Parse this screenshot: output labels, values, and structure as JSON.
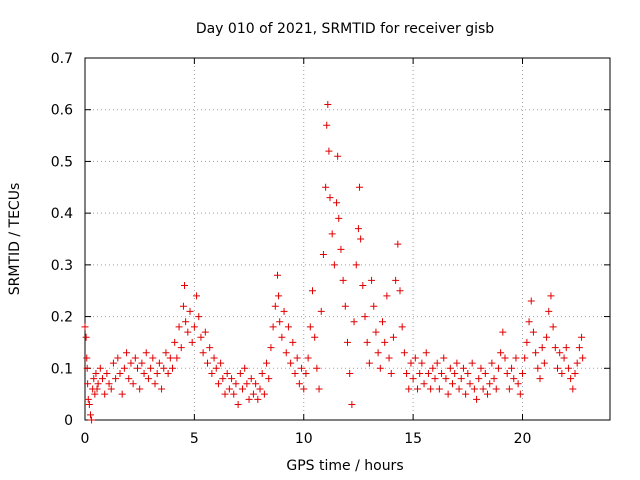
{
  "chart_data": {
    "type": "scatter",
    "title": "Day 010 of 2021, SRMTID for receiver gisb",
    "xlabel": "GPS time / hours",
    "ylabel": "SRMTID / TECUs",
    "xlim": [
      0,
      24
    ],
    "ylim": [
      0,
      0.7
    ],
    "x_ticks": [
      0,
      5,
      10,
      15,
      20
    ],
    "x_tick_labels": [
      "0",
      "5",
      "10",
      "15",
      "20"
    ],
    "y_ticks": [
      0,
      0.1,
      0.2,
      0.3,
      0.4,
      0.5,
      0.6,
      0.7
    ],
    "y_tick_labels": [
      "0",
      "0.1",
      "0.2",
      "0.3",
      "0.4",
      "0.5",
      "0.6",
      "0.7"
    ],
    "grid": true,
    "marker": "plus",
    "color": "#e00000",
    "series": [
      {
        "name": "SRMTID",
        "points": [
          [
            0.0,
            0.18
          ],
          [
            0.05,
            0.16
          ],
          [
            0.08,
            0.12
          ],
          [
            0.1,
            0.1
          ],
          [
            0.12,
            0.07
          ],
          [
            0.15,
            0.04
          ],
          [
            0.2,
            0.03
          ],
          [
            0.25,
            0.01
          ],
          [
            0.3,
            0.0
          ],
          [
            0.35,
            0.06
          ],
          [
            0.4,
            0.08
          ],
          [
            0.45,
            0.05
          ],
          [
            0.5,
            0.09
          ],
          [
            0.55,
            0.06
          ],
          [
            0.6,
            0.07
          ],
          [
            0.7,
            0.1
          ],
          [
            0.8,
            0.08
          ],
          [
            0.9,
            0.05
          ],
          [
            1.0,
            0.09
          ],
          [
            1.1,
            0.07
          ],
          [
            1.2,
            0.06
          ],
          [
            1.3,
            0.11
          ],
          [
            1.4,
            0.08
          ],
          [
            1.5,
            0.12
          ],
          [
            1.6,
            0.09
          ],
          [
            1.7,
            0.05
          ],
          [
            1.8,
            0.1
          ],
          [
            1.9,
            0.13
          ],
          [
            2.0,
            0.08
          ],
          [
            2.1,
            0.11
          ],
          [
            2.2,
            0.07
          ],
          [
            2.3,
            0.12
          ],
          [
            2.4,
            0.1
          ],
          [
            2.5,
            0.06
          ],
          [
            2.6,
            0.11
          ],
          [
            2.7,
            0.09
          ],
          [
            2.8,
            0.13
          ],
          [
            2.9,
            0.08
          ],
          [
            3.0,
            0.1
          ],
          [
            3.1,
            0.12
          ],
          [
            3.2,
            0.07
          ],
          [
            3.3,
            0.09
          ],
          [
            3.4,
            0.11
          ],
          [
            3.5,
            0.06
          ],
          [
            3.6,
            0.1
          ],
          [
            3.7,
            0.13
          ],
          [
            3.8,
            0.09
          ],
          [
            3.9,
            0.12
          ],
          [
            4.0,
            0.1
          ],
          [
            4.1,
            0.15
          ],
          [
            4.2,
            0.12
          ],
          [
            4.3,
            0.18
          ],
          [
            4.4,
            0.14
          ],
          [
            4.5,
            0.22
          ],
          [
            4.55,
            0.26
          ],
          [
            4.6,
            0.19
          ],
          [
            4.7,
            0.17
          ],
          [
            4.8,
            0.21
          ],
          [
            4.9,
            0.15
          ],
          [
            5.0,
            0.18
          ],
          [
            5.1,
            0.24
          ],
          [
            5.2,
            0.2
          ],
          [
            5.3,
            0.16
          ],
          [
            5.4,
            0.13
          ],
          [
            5.5,
            0.17
          ],
          [
            5.6,
            0.11
          ],
          [
            5.7,
            0.14
          ],
          [
            5.8,
            0.09
          ],
          [
            5.9,
            0.12
          ],
          [
            6.0,
            0.1
          ],
          [
            6.1,
            0.07
          ],
          [
            6.2,
            0.11
          ],
          [
            6.3,
            0.08
          ],
          [
            6.4,
            0.05
          ],
          [
            6.5,
            0.09
          ],
          [
            6.6,
            0.06
          ],
          [
            6.7,
            0.08
          ],
          [
            6.8,
            0.05
          ],
          [
            6.9,
            0.07
          ],
          [
            7.0,
            0.03
          ],
          [
            7.1,
            0.09
          ],
          [
            7.2,
            0.06
          ],
          [
            7.3,
            0.1
          ],
          [
            7.4,
            0.07
          ],
          [
            7.5,
            0.04
          ],
          [
            7.6,
            0.08
          ],
          [
            7.7,
            0.05
          ],
          [
            7.8,
            0.07
          ],
          [
            7.9,
            0.04
          ],
          [
            8.0,
            0.06
          ],
          [
            8.1,
            0.09
          ],
          [
            8.2,
            0.05
          ],
          [
            8.3,
            0.11
          ],
          [
            8.4,
            0.08
          ],
          [
            8.5,
            0.14
          ],
          [
            8.6,
            0.18
          ],
          [
            8.7,
            0.22
          ],
          [
            8.8,
            0.28
          ],
          [
            8.85,
            0.24
          ],
          [
            8.9,
            0.19
          ],
          [
            9.0,
            0.16
          ],
          [
            9.1,
            0.21
          ],
          [
            9.2,
            0.13
          ],
          [
            9.3,
            0.18
          ],
          [
            9.4,
            0.11
          ],
          [
            9.5,
            0.15
          ],
          [
            9.6,
            0.09
          ],
          [
            9.7,
            0.12
          ],
          [
            9.8,
            0.07
          ],
          [
            9.9,
            0.1
          ],
          [
            10.0,
            0.06
          ],
          [
            10.1,
            0.09
          ],
          [
            10.2,
            0.12
          ],
          [
            10.3,
            0.18
          ],
          [
            10.4,
            0.25
          ],
          [
            10.5,
            0.16
          ],
          [
            10.6,
            0.1
          ],
          [
            10.7,
            0.06
          ],
          [
            10.8,
            0.21
          ],
          [
            10.9,
            0.32
          ],
          [
            11.0,
            0.45
          ],
          [
            11.05,
            0.57
          ],
          [
            11.1,
            0.61
          ],
          [
            11.15,
            0.52
          ],
          [
            11.2,
            0.43
          ],
          [
            11.3,
            0.36
          ],
          [
            11.4,
            0.3
          ],
          [
            11.5,
            0.42
          ],
          [
            11.55,
            0.51
          ],
          [
            11.6,
            0.39
          ],
          [
            11.7,
            0.33
          ],
          [
            11.8,
            0.27
          ],
          [
            11.9,
            0.22
          ],
          [
            12.0,
            0.15
          ],
          [
            12.1,
            0.09
          ],
          [
            12.2,
            0.03
          ],
          [
            12.3,
            0.19
          ],
          [
            12.4,
            0.3
          ],
          [
            12.5,
            0.37
          ],
          [
            12.55,
            0.45
          ],
          [
            12.6,
            0.35
          ],
          [
            12.7,
            0.26
          ],
          [
            12.8,
            0.2
          ],
          [
            12.9,
            0.15
          ],
          [
            13.0,
            0.11
          ],
          [
            13.1,
            0.27
          ],
          [
            13.2,
            0.22
          ],
          [
            13.3,
            0.17
          ],
          [
            13.4,
            0.13
          ],
          [
            13.5,
            0.1
          ],
          [
            13.6,
            0.19
          ],
          [
            13.7,
            0.15
          ],
          [
            13.8,
            0.24
          ],
          [
            13.9,
            0.12
          ],
          [
            14.0,
            0.09
          ],
          [
            14.1,
            0.16
          ],
          [
            14.2,
            0.27
          ],
          [
            14.3,
            0.34
          ],
          [
            14.4,
            0.25
          ],
          [
            14.5,
            0.18
          ],
          [
            14.6,
            0.13
          ],
          [
            14.7,
            0.09
          ],
          [
            14.8,
            0.06
          ],
          [
            14.9,
            0.11
          ],
          [
            15.0,
            0.08
          ],
          [
            15.1,
            0.12
          ],
          [
            15.2,
            0.06
          ],
          [
            15.3,
            0.09
          ],
          [
            15.4,
            0.11
          ],
          [
            15.5,
            0.07
          ],
          [
            15.6,
            0.13
          ],
          [
            15.7,
            0.09
          ],
          [
            15.8,
            0.06
          ],
          [
            15.9,
            0.1
          ],
          [
            16.0,
            0.08
          ],
          [
            16.1,
            0.11
          ],
          [
            16.2,
            0.06
          ],
          [
            16.3,
            0.09
          ],
          [
            16.4,
            0.12
          ],
          [
            16.5,
            0.08
          ],
          [
            16.6,
            0.05
          ],
          [
            16.7,
            0.1
          ],
          [
            16.8,
            0.07
          ],
          [
            16.9,
            0.09
          ],
          [
            17.0,
            0.11
          ],
          [
            17.1,
            0.06
          ],
          [
            17.2,
            0.08
          ],
          [
            17.3,
            0.1
          ],
          [
            17.4,
            0.05
          ],
          [
            17.5,
            0.09
          ],
          [
            17.6,
            0.07
          ],
          [
            17.7,
            0.11
          ],
          [
            17.8,
            0.06
          ],
          [
            17.9,
            0.04
          ],
          [
            18.0,
            0.08
          ],
          [
            18.1,
            0.1
          ],
          [
            18.2,
            0.06
          ],
          [
            18.3,
            0.09
          ],
          [
            18.4,
            0.05
          ],
          [
            18.5,
            0.07
          ],
          [
            18.6,
            0.11
          ],
          [
            18.7,
            0.08
          ],
          [
            18.8,
            0.06
          ],
          [
            18.9,
            0.1
          ],
          [
            19.0,
            0.13
          ],
          [
            19.1,
            0.17
          ],
          [
            19.2,
            0.12
          ],
          [
            19.3,
            0.09
          ],
          [
            19.4,
            0.06
          ],
          [
            19.5,
            0.1
          ],
          [
            19.6,
            0.08
          ],
          [
            19.7,
            0.12
          ],
          [
            19.8,
            0.07
          ],
          [
            19.9,
            0.05
          ],
          [
            20.0,
            0.09
          ],
          [
            20.1,
            0.12
          ],
          [
            20.2,
            0.15
          ],
          [
            20.3,
            0.19
          ],
          [
            20.4,
            0.23
          ],
          [
            20.5,
            0.17
          ],
          [
            20.6,
            0.13
          ],
          [
            20.7,
            0.1
          ],
          [
            20.8,
            0.08
          ],
          [
            20.9,
            0.14
          ],
          [
            21.0,
            0.11
          ],
          [
            21.1,
            0.16
          ],
          [
            21.2,
            0.21
          ],
          [
            21.3,
            0.24
          ],
          [
            21.4,
            0.18
          ],
          [
            21.5,
            0.14
          ],
          [
            21.6,
            0.1
          ],
          [
            21.7,
            0.13
          ],
          [
            21.8,
            0.09
          ],
          [
            21.9,
            0.12
          ],
          [
            22.0,
            0.14
          ],
          [
            22.1,
            0.1
          ],
          [
            22.2,
            0.08
          ],
          [
            22.3,
            0.06
          ],
          [
            22.4,
            0.09
          ],
          [
            22.5,
            0.11
          ],
          [
            22.6,
            0.14
          ],
          [
            22.7,
            0.16
          ],
          [
            22.75,
            0.12
          ]
        ]
      }
    ]
  }
}
